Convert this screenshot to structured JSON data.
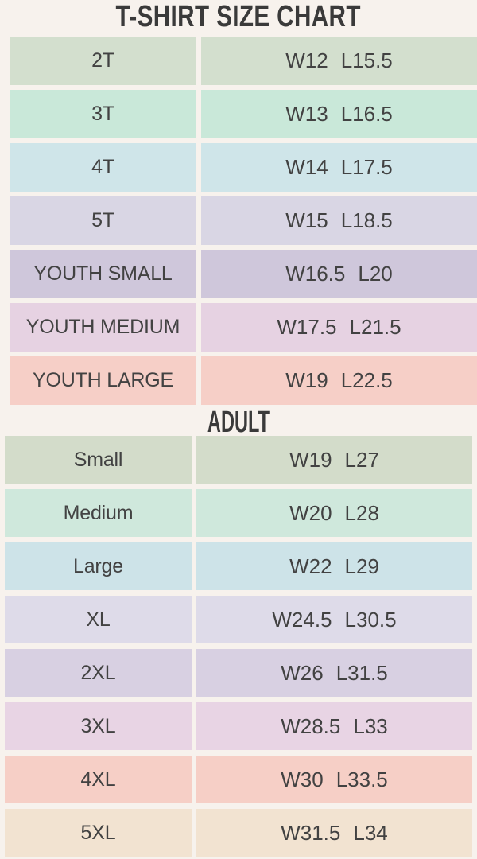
{
  "colors": {
    "background": "#f7f2ed",
    "text": "#424242",
    "heading": "#3a3a3a"
  },
  "chart_data": {
    "type": "table",
    "title": "T-SHIRT SIZE CHART",
    "adult_section_label": "ADULT",
    "youth_rows": [
      {
        "size": "2T",
        "width": "W12",
        "length": "L15.5",
        "color": "#d3dfce"
      },
      {
        "size": "3T",
        "width": "W13",
        "length": "L16.5",
        "color": "#c9e8d9"
      },
      {
        "size": "4T",
        "width": "W14",
        "length": "L17.5",
        "color": "#cfe5e9"
      },
      {
        "size": "5T",
        "width": "W15",
        "length": "L18.5",
        "color": "#d9d6e4"
      },
      {
        "size": "YOUTH SMALL",
        "width": "W16.5",
        "length": "L20",
        "color": "#cfc7db"
      },
      {
        "size": "YOUTH MEDIUM",
        "width": "W17.5",
        "length": "L21.5",
        "color": "#e6d2e2"
      },
      {
        "size": "YOUTH LARGE",
        "width": "W19",
        "length": "L22.5",
        "color": "#f6cfc7"
      }
    ],
    "adult_rows": [
      {
        "size": "Small",
        "width": "W19",
        "length": "L27",
        "color": "#d3dcca"
      },
      {
        "size": "Medium",
        "width": "W20",
        "length": "L28",
        "color": "#cfe8dc"
      },
      {
        "size": "Large",
        "width": "W22",
        "length": "L29",
        "color": "#cde3e8"
      },
      {
        "size": "XL",
        "width": "W24.5",
        "length": "L30.5",
        "color": "#dedbe9"
      },
      {
        "size": "2XL",
        "width": "W26",
        "length": "L31.5",
        "color": "#d8d0e2"
      },
      {
        "size": "3XL",
        "width": "W28.5",
        "length": "L33",
        "color": "#e8d4e4"
      },
      {
        "size": "4XL",
        "width": "W30",
        "length": "L33.5",
        "color": "#f6cfc6"
      },
      {
        "size": "5XL",
        "width": "W31.5",
        "length": "L34",
        "color": "#f2e3d1"
      }
    ]
  }
}
